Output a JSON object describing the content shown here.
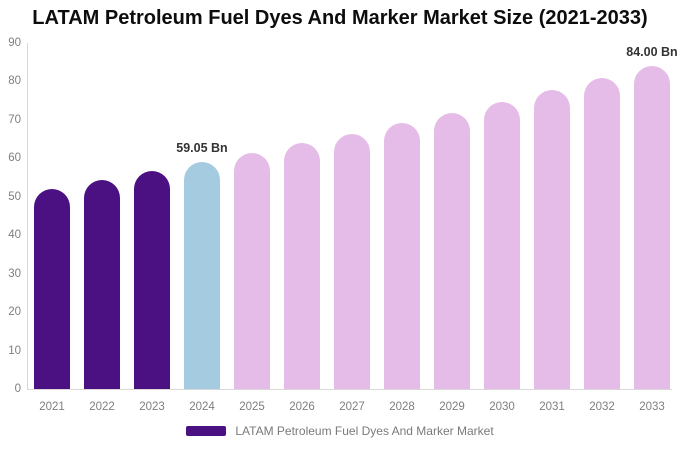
{
  "title": "LATAM Petroleum Fuel Dyes And Marker Market Size (2021-2033)",
  "colors": {
    "historical": "#4B1183",
    "highlight": "#A5CBE0",
    "forecast": "#E5BCE7",
    "axis_line": "#D8D8D8",
    "axis_text": "#7F7F7F",
    "annotation_text": "#333333",
    "title_text": "#0D0D0D"
  },
  "legend": {
    "label": "LATAM Petroleum Fuel Dyes And Marker Market",
    "swatch_color": "#4B1183"
  },
  "chart_data": {
    "type": "bar",
    "title": "LATAM Petroleum Fuel Dyes And Marker Market Size (2021-2033)",
    "xlabel": "",
    "ylabel": "",
    "categories": [
      "2021",
      "2022",
      "2023",
      "2024",
      "2025",
      "2026",
      "2027",
      "2028",
      "2029",
      "2030",
      "2031",
      "2032",
      "2033"
    ],
    "values": [
      52.0,
      54.3,
      56.6,
      59.05,
      61.4,
      63.9,
      66.4,
      69.1,
      71.8,
      74.7,
      77.7,
      80.8,
      84.0
    ],
    "groups": [
      "historical",
      "historical",
      "historical",
      "highlight",
      "forecast",
      "forecast",
      "forecast",
      "forecast",
      "forecast",
      "forecast",
      "forecast",
      "forecast",
      "forecast"
    ],
    "unit": "Bn",
    "annotations": [
      {
        "year": "2024",
        "text": "59.05 Bn"
      },
      {
        "year": "2033",
        "text": "84.00 Bn"
      }
    ],
    "ylim": [
      0,
      90
    ],
    "yticks": [
      0,
      10,
      20,
      30,
      40,
      50,
      60,
      70,
      80,
      90
    ],
    "grid": false,
    "legend_position": "bottom",
    "legend_entries": [
      "LATAM Petroleum Fuel Dyes And Marker Market"
    ]
  }
}
